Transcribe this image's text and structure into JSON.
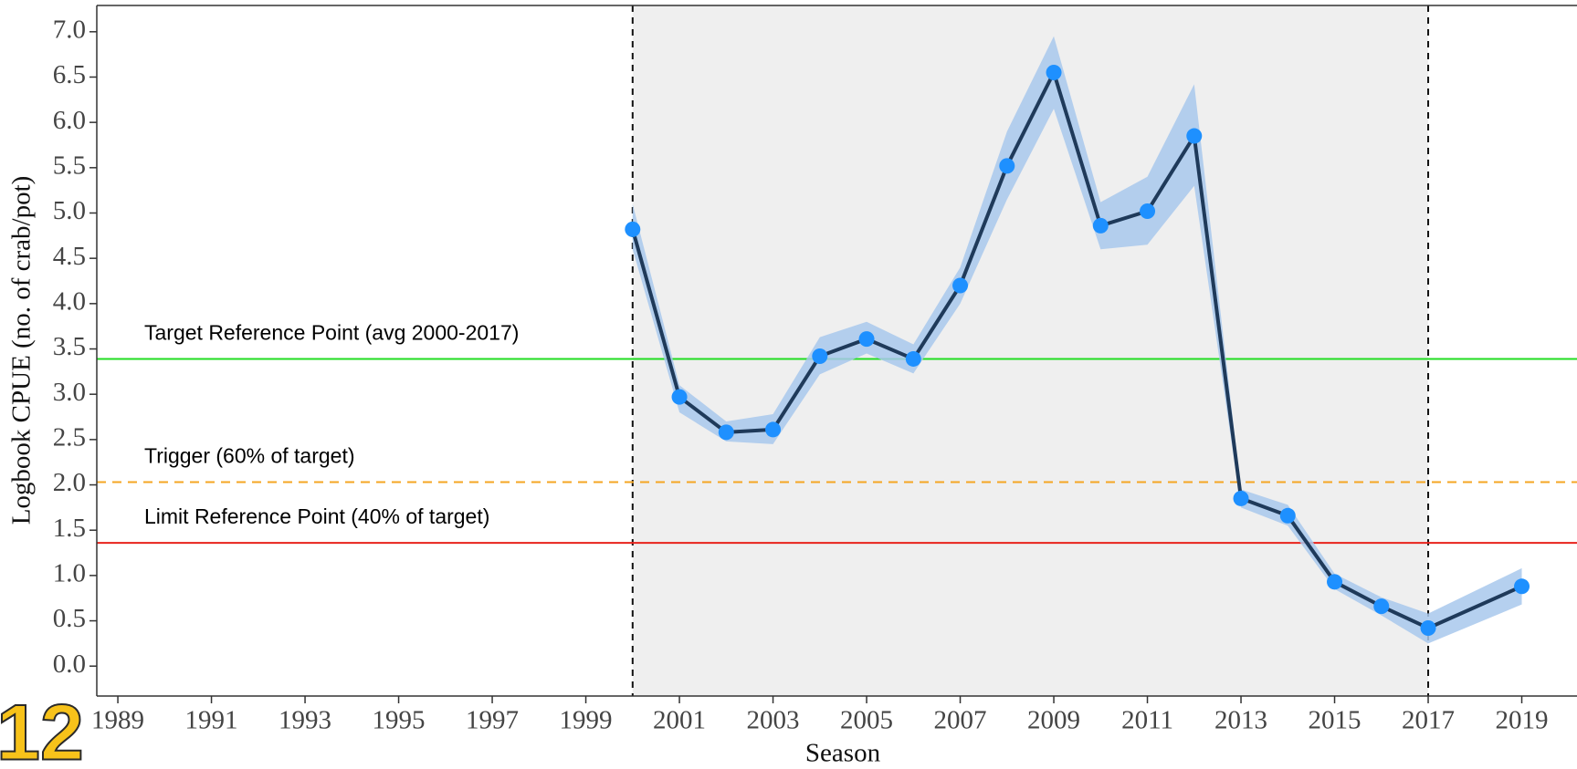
{
  "chart_data": {
    "type": "line",
    "xlabel": "Season",
    "ylabel": "Logbook CPUE (no. of crab/pot)",
    "x": [
      2000,
      2001,
      2002,
      2003,
      2004,
      2005,
      2006,
      2007,
      2008,
      2009,
      2010,
      2011,
      2012,
      2013,
      2014,
      2015,
      2016,
      2017,
      2019
    ],
    "series": [
      {
        "color": "#1e90ff",
        "line_color": "#1f3a5a",
        "band_color": "#a8c8ec",
        "values": [
          4.82,
          2.97,
          2.58,
          2.61,
          3.42,
          3.61,
          3.39,
          4.2,
          5.52,
          6.55,
          4.86,
          5.02,
          5.85,
          1.85,
          1.66,
          0.93,
          0.66,
          0.42,
          0.88
        ],
        "lower": [
          4.6,
          2.8,
          2.48,
          2.45,
          3.22,
          3.45,
          3.23,
          4.0,
          5.15,
          6.15,
          4.6,
          4.65,
          5.3,
          1.75,
          1.55,
          0.85,
          0.56,
          0.25,
          0.68
        ],
        "upper": [
          5.1,
          3.1,
          2.7,
          2.78,
          3.63,
          3.8,
          3.55,
          4.4,
          5.9,
          6.95,
          5.12,
          5.4,
          6.42,
          1.95,
          1.78,
          1.02,
          0.76,
          0.58,
          1.08
        ]
      }
    ],
    "reference_lines": [
      {
        "label": "Target Reference Point (avg 2000-2017)",
        "value": 3.39,
        "color": "#22dd22",
        "dashed": false
      },
      {
        "label": "Trigger (60% of target)",
        "value": 2.03,
        "color": "#f5a623",
        "dashed": true
      },
      {
        "label": "Limit Reference Point (40% of target)",
        "value": 1.36,
        "color": "#e8221b",
        "dashed": false
      }
    ],
    "vlines": [
      2000,
      2017
    ],
    "shade": [
      2000,
      2017
    ],
    "shade_color": "#efefef",
    "xlim": [
      1988.55,
      2020.18
    ],
    "xticks": [
      1989,
      1991,
      1993,
      1995,
      1997,
      1999,
      2001,
      2003,
      2005,
      2007,
      2009,
      2011,
      2013,
      2015,
      2017,
      2019
    ],
    "ylim": [
      -0.33,
      7.29
    ],
    "yticks": [
      {
        "value": 0,
        "label": "0.0"
      },
      0.5,
      {
        "value": 1,
        "label": "1.0"
      },
      1.5,
      {
        "value": 2,
        "label": "2.0"
      },
      2.5,
      {
        "value": 3,
        "label": "3.0"
      },
      3.5,
      {
        "value": 4,
        "label": "4.0"
      },
      4.5,
      {
        "value": 5,
        "label": "5.0"
      },
      5.5,
      {
        "value": 6,
        "label": "6.0"
      },
      6.5,
      {
        "value": 7,
        "label": "7.0"
      }
    ]
  },
  "badge": "12"
}
